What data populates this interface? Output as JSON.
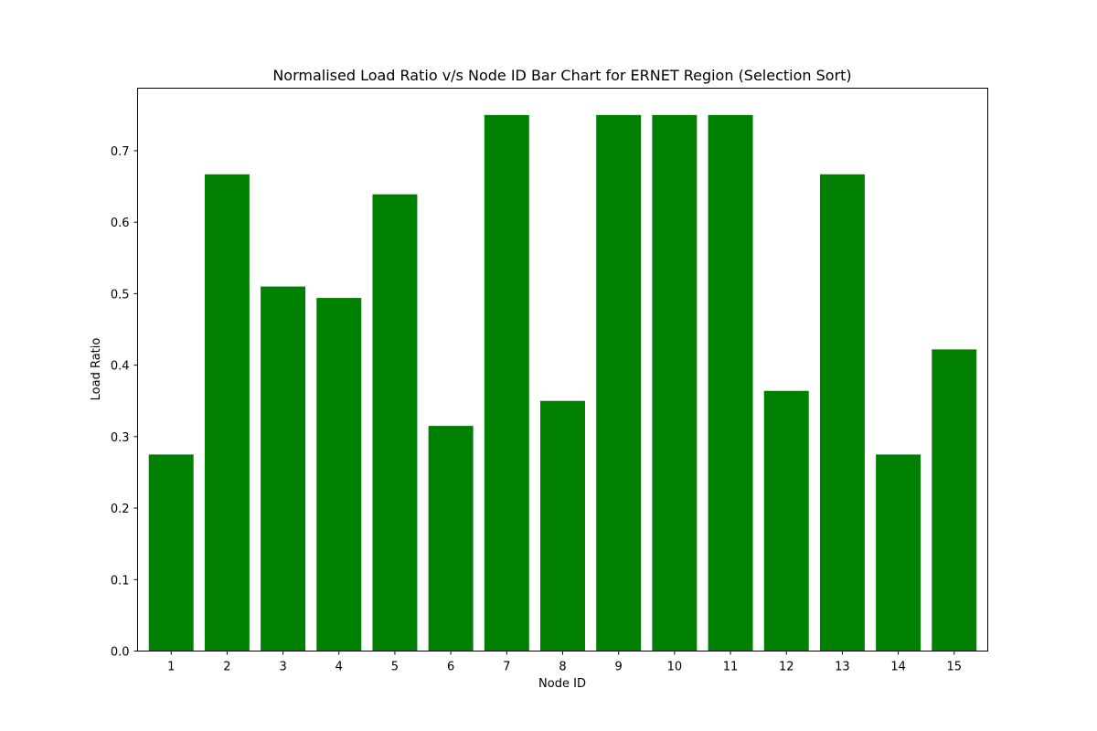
{
  "chart_data": {
    "type": "bar",
    "title": "Normalised Load Ratio v/s Node ID Bar Chart for ERNET Region (Selection Sort)",
    "xlabel": "Node ID",
    "ylabel": "Load Ratio",
    "categories": [
      "1",
      "2",
      "3",
      "4",
      "5",
      "6",
      "7",
      "8",
      "9",
      "10",
      "11",
      "12",
      "13",
      "14",
      "15"
    ],
    "values": [
      0.275,
      0.667,
      0.51,
      0.494,
      0.639,
      0.315,
      0.75,
      0.35,
      0.75,
      0.75,
      0.75,
      0.364,
      0.667,
      0.275,
      0.422
    ],
    "ylim": [
      0,
      0.7875
    ],
    "yticks": [
      0.0,
      0.1,
      0.2,
      0.3,
      0.4,
      0.5,
      0.6,
      0.7
    ],
    "ytick_labels": [
      "0.0",
      "0.1",
      "0.2",
      "0.3",
      "0.4",
      "0.5",
      "0.6",
      "0.7"
    ],
    "bar_color": "#008000",
    "grid": false,
    "legend": "none"
  }
}
